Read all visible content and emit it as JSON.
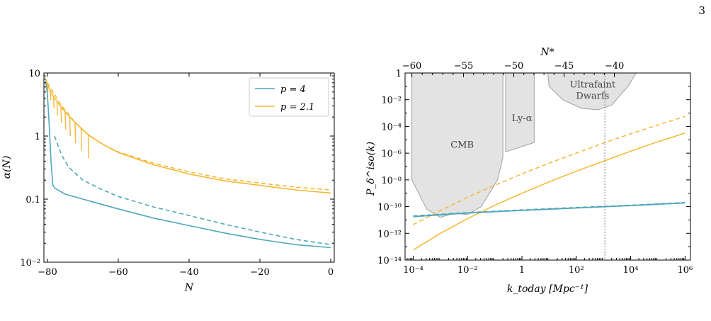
{
  "page_number": "3",
  "colors": {
    "blue": "#4fa7b9",
    "orange": "#f7b733",
    "region_fill": "#e3e3e3",
    "region_edge": "#a0a0a0"
  },
  "chart_data": [
    {
      "type": "line",
      "yscale": "log",
      "xlim": [
        -81,
        1
      ],
      "ylim": [
        0.01,
        10
      ],
      "xlabel": "N",
      "ylabel": "α(N)",
      "x_ticks": [
        "−80",
        "−60",
        "−40",
        "−20",
        "0"
      ],
      "y_ticks": [
        "10⁻²",
        "0.1",
        "1",
        "10"
      ],
      "grid": false,
      "legend_placement": "top-right",
      "legend": [
        {
          "label": "p = 4",
          "color": "#4fa7b9"
        },
        {
          "label": "p = 2.1",
          "color": "#f7b733"
        }
      ],
      "series": [
        {
          "legend_ref": 0,
          "style": "solid",
          "color": "#4fa7b9",
          "points": [
            [
              -80.5,
              7.5
            ],
            [
              -80,
              4.5
            ],
            [
              -79.5,
              1.5
            ],
            [
              -79,
              0.4
            ],
            [
              -78.5,
              0.17
            ],
            [
              -78,
              0.15
            ],
            [
              -75,
              0.12
            ],
            [
              -70,
              0.1
            ],
            [
              -60,
              0.07
            ],
            [
              -50,
              0.05
            ],
            [
              -40,
              0.038
            ],
            [
              -30,
              0.029
            ],
            [
              -20,
              0.023
            ],
            [
              -10,
              0.019
            ],
            [
              0,
              0.017
            ]
          ]
        },
        {
          "legend_ref": 0,
          "style": "dashed",
          "color": "#4fa7b9",
          "points": [
            [
              -78,
              1.0
            ],
            [
              -76,
              0.5
            ],
            [
              -74,
              0.32
            ],
            [
              -70,
              0.2
            ],
            [
              -65,
              0.145
            ],
            [
              -60,
              0.11
            ],
            [
              -50,
              0.075
            ],
            [
              -40,
              0.055
            ],
            [
              -30,
              0.04
            ],
            [
              -20,
              0.03
            ],
            [
              -10,
              0.023
            ],
            [
              0,
              0.019
            ]
          ]
        },
        {
          "legend_ref": 1,
          "style": "solid",
          "color": "#f7b733",
          "points": [
            [
              -80.5,
              8
            ],
            [
              -80,
              6.5
            ],
            [
              -79,
              5
            ],
            [
              -78,
              4
            ],
            [
              -76,
              2.8
            ],
            [
              -74,
              2.1
            ],
            [
              -72,
              1.6
            ],
            [
              -70,
              1.25
            ],
            [
              -68,
              1.0
            ],
            [
              -66,
              0.85
            ],
            [
              -64,
              0.72
            ],
            [
              -60,
              0.55
            ],
            [
              -50,
              0.35
            ],
            [
              -40,
              0.25
            ],
            [
              -30,
              0.195
            ],
            [
              -20,
              0.165
            ],
            [
              -10,
              0.14
            ],
            [
              0,
              0.125
            ]
          ]
        },
        {
          "legend_ref": 1,
          "style": "dashed",
          "color": "#f7b733",
          "points": [
            [
              -80,
              7
            ],
            [
              -76,
              3
            ],
            [
              -72,
              1.6
            ],
            [
              -68,
              1.0
            ],
            [
              -64,
              0.72
            ],
            [
              -60,
              0.56
            ],
            [
              -50,
              0.37
            ],
            [
              -40,
              0.27
            ],
            [
              -30,
              0.21
            ],
            [
              -20,
              0.18
            ],
            [
              -10,
              0.155
            ],
            [
              0,
              0.14
            ]
          ]
        }
      ]
    },
    {
      "type": "line",
      "xscale": "log",
      "yscale": "log",
      "xlim": [
        -4.3,
        6.2
      ],
      "ylim": [
        -14,
        0
      ],
      "xlabel": "k_today [Mpc⁻¹]",
      "ylabel": "P_δ^iso(k)",
      "top_axis_label": "N*",
      "x_ticks": [
        "10⁻⁴",
        "10⁻²",
        "1",
        "10²",
        "10⁴",
        "10⁶"
      ],
      "y_ticks": [
        "1",
        "10⁻²",
        "10⁻⁴",
        "10⁻⁶",
        "10⁻⁸",
        "10⁻¹⁰",
        "10⁻¹²",
        "10⁻¹⁴"
      ],
      "top_ticks": [
        "−60",
        "−55",
        "−50",
        "−45",
        "−40"
      ],
      "grid": false,
      "vertical_line_log10k": 3.05,
      "regions": [
        {
          "label": "CMB",
          "points": [
            [
              -4.05,
              0
            ],
            [
              -4.05,
              -8
            ],
            [
              -3.5,
              -10.2
            ],
            [
              -3,
              -10.8
            ],
            [
              -2.5,
              -10.5
            ],
            [
              -2,
              -10.6
            ],
            [
              -1.5,
              -10
            ],
            [
              -0.9,
              -8
            ],
            [
              -0.7,
              -6.3
            ],
            [
              -0.7,
              0
            ]
          ]
        },
        {
          "label": "Ly-α",
          "points": [
            [
              -0.6,
              0
            ],
            [
              -0.6,
              -5.9
            ],
            [
              0.45,
              -5.2
            ],
            [
              0.45,
              0
            ]
          ]
        },
        {
          "label": "Ultrafaint Dwarfs",
          "points": [
            [
              0.95,
              0
            ],
            [
              1,
              -1
            ],
            [
              1.5,
              -2
            ],
            [
              2.2,
              -2.65
            ],
            [
              2.8,
              -2.75
            ],
            [
              3.3,
              -2.4
            ],
            [
              3.9,
              -1
            ],
            [
              4.2,
              0
            ]
          ]
        }
      ],
      "series": [
        {
          "style": "solid",
          "color": "#f7b733",
          "points": [
            [
              -4,
              -13.25
            ],
            [
              -3,
              -12.0
            ],
            [
              -2,
              -10.9
            ],
            [
              -1,
              -9.9
            ],
            [
              0,
              -9.0
            ],
            [
              1,
              -8.15
            ],
            [
              2,
              -7.35
            ],
            [
              3,
              -6.6
            ],
            [
              4,
              -5.85
            ],
            [
              5,
              -5.15
            ],
            [
              6,
              -4.5
            ]
          ]
        },
        {
          "style": "dashed",
          "color": "#f7b733",
          "points": [
            [
              -4,
              -11.35
            ],
            [
              -3,
              -10.3
            ],
            [
              -2,
              -9.3
            ],
            [
              -1,
              -8.4
            ],
            [
              0,
              -7.55
            ],
            [
              1,
              -6.75
            ],
            [
              2,
              -6.0
            ],
            [
              3,
              -5.25
            ],
            [
              4,
              -4.55
            ],
            [
              5,
              -3.9
            ],
            [
              6,
              -3.25
            ]
          ]
        },
        {
          "style": "solid",
          "color": "#4fa7b9",
          "points": [
            [
              -4,
              -10.75
            ],
            [
              -2,
              -10.48
            ],
            [
              0,
              -10.28
            ],
            [
              2,
              -10.1
            ],
            [
              4,
              -9.92
            ],
            [
              6,
              -9.72
            ]
          ]
        },
        {
          "style": "dashed",
          "color": "#4fa7b9",
          "points": [
            [
              -4,
              -10.7
            ],
            [
              -2,
              -10.45
            ],
            [
              0,
              -10.25
            ],
            [
              2,
              -10.07
            ],
            [
              4,
              -9.9
            ],
            [
              6,
              -9.7
            ]
          ]
        }
      ]
    }
  ]
}
